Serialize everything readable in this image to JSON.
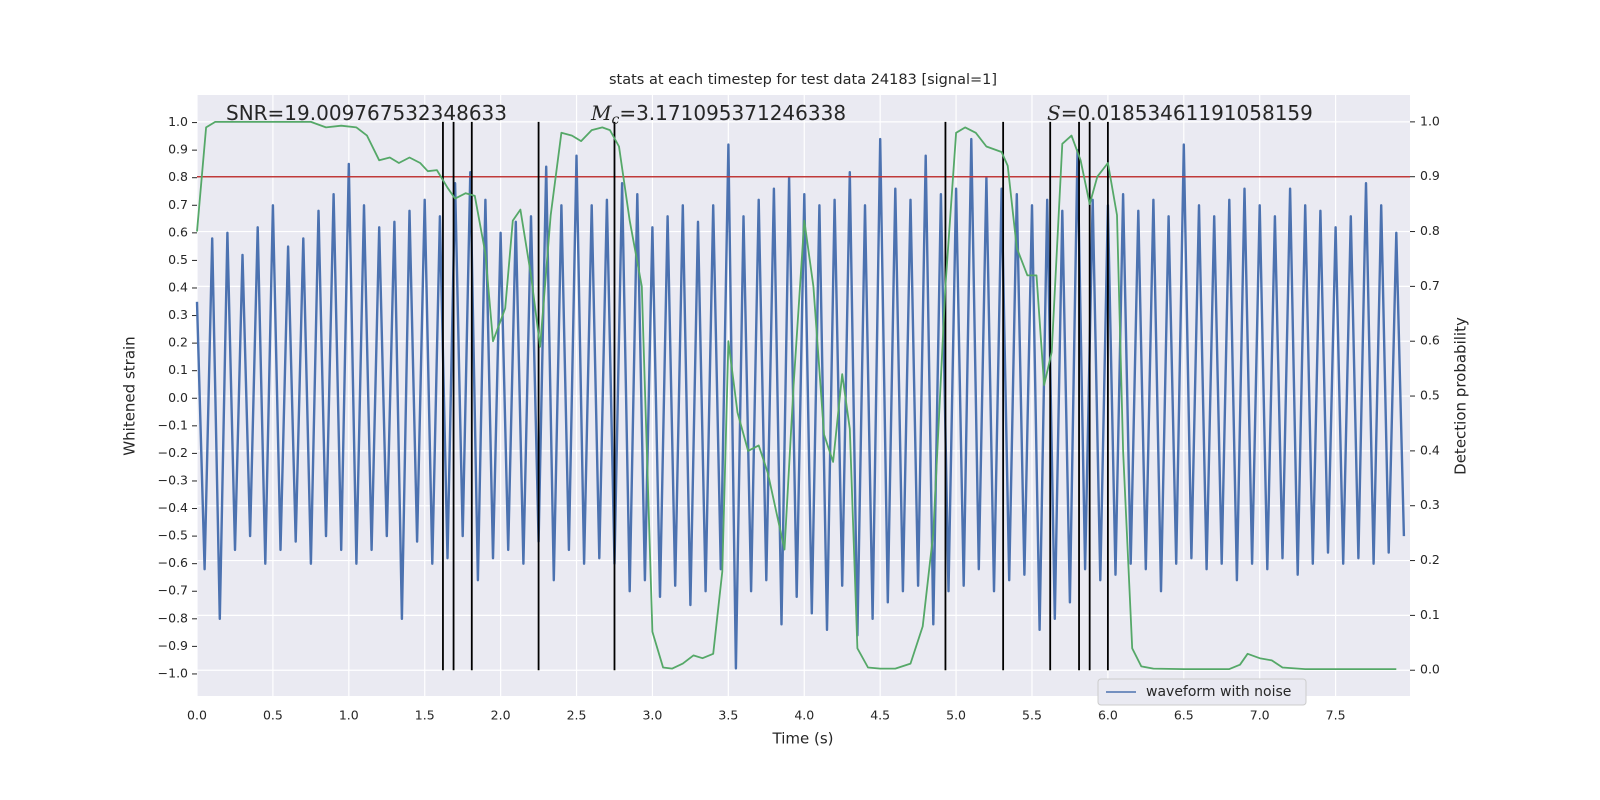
{
  "chart_data": {
    "type": "line",
    "title": "stats at each timestep for test data 24183 [signal=1]",
    "xlabel": "Time (s)",
    "ylabel": "Whitened strain",
    "y2label": "Detection probability",
    "annotations": [
      {
        "text": "SNR=19.009767532348633"
      },
      {
        "symbol": "M",
        "subscript": "c",
        "text": "=3.171095371246338"
      },
      {
        "symbol": "S",
        "text": "=0.01853461191058159"
      }
    ],
    "xlim": [
      0,
      7.99
    ],
    "ylim": [
      -1.08,
      1.1
    ],
    "y2lim": [
      -0.047,
      1.049
    ],
    "xticks": [
      {
        "value": 0,
        "label": "0.0"
      },
      0.5,
      {
        "value": 1,
        "label": "1.0"
      },
      1.5,
      {
        "value": 2,
        "label": "2.0"
      },
      2.5,
      {
        "value": 3,
        "label": "3.0"
      },
      3.5,
      {
        "value": 4,
        "label": "4.0"
      },
      4.5,
      {
        "value": 5,
        "label": "5.0"
      },
      5.5,
      {
        "value": 6,
        "label": "6.0"
      },
      6.5,
      {
        "value": 7,
        "label": "7.0"
      },
      7.5
    ],
    "yticks": [
      {
        "value": -1,
        "label": "−1.0"
      },
      {
        "value": -0.9,
        "label": "−0.9"
      },
      {
        "value": -0.8,
        "label": "−0.8"
      },
      {
        "value": -0.7,
        "label": "−0.7"
      },
      {
        "value": -0.6,
        "label": "−0.6"
      },
      {
        "value": -0.5,
        "label": "−0.5"
      },
      {
        "value": -0.4,
        "label": "−0.4"
      },
      {
        "value": -0.3,
        "label": "−0.3"
      },
      {
        "value": -0.2,
        "label": "−0.2"
      },
      {
        "value": -0.1,
        "label": "−0.1"
      },
      {
        "value": 0,
        "label": "0.0"
      },
      0.1,
      0.2,
      0.3,
      0.4,
      0.5,
      0.6,
      0.7,
      0.8,
      0.9,
      {
        "value": 1,
        "label": "1.0"
      }
    ],
    "y2ticks": [
      {
        "value": 0,
        "label": "0.0"
      },
      0.1,
      0.2,
      0.3,
      0.4,
      0.5,
      0.6,
      0.7,
      0.8,
      0.9,
      {
        "value": 1,
        "label": "1.0"
      }
    ],
    "grid": true,
    "legend": "lower right",
    "threshold": {
      "value": 0.9,
      "axis": "y2",
      "color": "#c03a3a"
    },
    "vlines": {
      "values": [
        1.62,
        1.69,
        1.81,
        2.25,
        2.75,
        4.93,
        5.31,
        5.62,
        5.81,
        5.88,
        6.0
      ],
      "ymin": 0,
      "ymax": 1,
      "axis": "y2",
      "color": "#000000"
    },
    "series": [
      {
        "name": "waveform with noise",
        "color": "#4c72b0",
        "x": [
          0,
          0.05,
          0.1,
          0.15,
          0.2,
          0.25,
          0.3,
          0.35,
          0.4,
          0.45,
          0.5,
          0.55,
          0.6,
          0.65,
          0.7,
          0.75,
          0.8,
          0.85,
          0.9,
          0.95,
          1,
          1.05,
          1.1,
          1.15,
          1.2,
          1.25,
          1.3,
          1.35,
          1.4,
          1.45,
          1.5,
          1.55,
          1.6,
          1.65,
          1.7,
          1.75,
          1.8,
          1.85,
          1.9,
          1.95,
          2,
          2.05,
          2.1,
          2.15,
          2.2,
          2.25,
          2.3,
          2.35,
          2.4,
          2.45,
          2.5,
          2.55,
          2.6,
          2.65,
          2.7,
          2.75,
          2.8,
          2.85,
          2.9,
          2.95,
          3,
          3.05,
          3.1,
          3.15,
          3.2,
          3.25,
          3.3,
          3.35,
          3.4,
          3.45,
          3.5,
          3.55,
          3.6,
          3.65,
          3.7,
          3.75,
          3.8,
          3.85,
          3.9,
          3.95,
          4,
          4.05,
          4.1,
          4.15,
          4.2,
          4.25,
          4.3,
          4.35,
          4.4,
          4.45,
          4.5,
          4.55,
          4.6,
          4.65,
          4.7,
          4.75,
          4.8,
          4.85,
          4.9,
          4.95,
          5,
          5.05,
          5.1,
          5.15,
          5.2,
          5.25,
          5.3,
          5.35,
          5.4,
          5.45,
          5.5,
          5.55,
          5.6,
          5.65,
          5.7,
          5.75,
          5.8,
          5.85,
          5.9,
          5.95,
          6,
          6.05,
          6.1,
          6.15,
          6.2,
          6.25,
          6.3,
          6.35,
          6.4,
          6.45,
          6.5,
          6.55,
          6.6,
          6.65,
          6.7,
          6.75,
          6.8,
          6.85,
          6.9,
          6.95,
          7,
          7.05,
          7.1,
          7.15,
          7.2,
          7.25,
          7.3,
          7.35,
          7.4,
          7.45,
          7.5,
          7.55,
          7.6,
          7.65,
          7.7,
          7.75,
          7.8,
          7.85,
          7.9,
          7.95
        ],
        "values": [
          0.35,
          -0.62,
          0.58,
          -0.8,
          0.6,
          -0.55,
          0.52,
          -0.5,
          0.62,
          -0.6,
          0.7,
          -0.55,
          0.55,
          -0.52,
          0.58,
          -0.6,
          0.68,
          -0.5,
          0.74,
          -0.55,
          0.85,
          -0.6,
          0.7,
          -0.55,
          0.62,
          -0.5,
          0.64,
          -0.8,
          0.68,
          -0.52,
          0.72,
          -0.6,
          0.66,
          -0.58,
          0.78,
          -0.5,
          0.82,
          -0.66,
          0.72,
          -0.58,
          0.6,
          -0.55,
          0.64,
          -0.6,
          0.66,
          -0.52,
          0.84,
          -0.66,
          0.7,
          -0.55,
          0.88,
          -0.6,
          0.7,
          -0.58,
          0.72,
          -0.6,
          0.78,
          -0.7,
          0.74,
          -0.66,
          0.62,
          -0.72,
          0.66,
          -0.68,
          0.7,
          -0.75,
          0.64,
          -0.7,
          0.7,
          -0.62,
          0.92,
          -0.98,
          0.66,
          -0.7,
          0.72,
          -0.66,
          0.76,
          -0.82,
          0.8,
          -0.72,
          0.74,
          -0.78,
          0.7,
          -0.84,
          0.72,
          -0.68,
          0.82,
          -0.86,
          0.7,
          -0.8,
          0.94,
          -0.74,
          0.76,
          -0.7,
          0.72,
          -0.68,
          0.88,
          -0.82,
          0.74,
          -0.7,
          0.76,
          -0.68,
          0.94,
          -0.62,
          0.8,
          -0.7,
          0.76,
          -0.66,
          0.74,
          -0.64,
          0.7,
          -0.84,
          0.72,
          -0.8,
          0.68,
          -0.74,
          0.9,
          -0.62,
          0.72,
          -0.66,
          0.7,
          -0.64,
          0.74,
          -0.6,
          0.68,
          -0.62,
          0.72,
          -0.7,
          0.66,
          -0.6,
          0.92,
          -0.58,
          0.7,
          -0.62,
          0.66,
          -0.6,
          0.72,
          -0.66,
          0.76,
          -0.6,
          0.7,
          -0.62,
          0.66,
          -0.58,
          0.76,
          -0.64,
          0.7,
          -0.6,
          0.68,
          -0.56,
          0.62,
          -0.6,
          0.66,
          -0.58,
          0.78,
          -0.6,
          0.7,
          -0.56,
          0.6,
          -0.5
        ]
      },
      {
        "color": "#55a868",
        "axis": "y2",
        "x": [
          0,
          0.06,
          0.12,
          0.75,
          0.85,
          0.95,
          1.05,
          1.12,
          1.2,
          1.27,
          1.33,
          1.4,
          1.47,
          1.52,
          1.58,
          1.65,
          1.7,
          1.77,
          1.83,
          1.9,
          1.95,
          2.03,
          2.08,
          2.13,
          2.2,
          2.26,
          2.33,
          2.4,
          2.47,
          2.53,
          2.6,
          2.67,
          2.72,
          2.78,
          2.85,
          2.93,
          3,
          3.07,
          3.13,
          3.2,
          3.27,
          3.33,
          3.4,
          3.46,
          3.5,
          3.56,
          3.63,
          3.7,
          3.76,
          3.87,
          3.93,
          4,
          4.06,
          4.13,
          4.19,
          4.25,
          4.3,
          4.35,
          4.42,
          4.5,
          4.6,
          4.7,
          4.78,
          4.85,
          4.93,
          5,
          5.06,
          5.13,
          5.2,
          5.3,
          5.34,
          5.4,
          5.47,
          5.53,
          5.58,
          5.63,
          5.7,
          5.76,
          5.82,
          5.88,
          5.93,
          6,
          6.06,
          6.1,
          6.16,
          6.22,
          6.3,
          6.5,
          6.8,
          6.87,
          6.92,
          7,
          7.08,
          7.15,
          7.3,
          7.6,
          7.9
        ],
        "values": [
          0.8,
          0.99,
          1,
          1,
          0.99,
          0.993,
          0.99,
          0.975,
          0.93,
          0.935,
          0.925,
          0.935,
          0.925,
          0.91,
          0.912,
          0.88,
          0.86,
          0.87,
          0.865,
          0.76,
          0.6,
          0.66,
          0.82,
          0.84,
          0.72,
          0.59,
          0.83,
          0.98,
          0.975,
          0.965,
          0.985,
          0.99,
          0.985,
          0.955,
          0.82,
          0.7,
          0.07,
          0.005,
          0.003,
          0.012,
          0.027,
          0.022,
          0.03,
          0.18,
          0.6,
          0.47,
          0.4,
          0.41,
          0.36,
          0.22,
          0.52,
          0.82,
          0.7,
          0.43,
          0.38,
          0.54,
          0.44,
          0.04,
          0.005,
          0.003,
          0.003,
          0.012,
          0.08,
          0.25,
          0.7,
          0.98,
          0.99,
          0.98,
          0.955,
          0.945,
          0.92,
          0.77,
          0.72,
          0.72,
          0.52,
          0.58,
          0.96,
          0.975,
          0.93,
          0.85,
          0.9,
          0.925,
          0.83,
          0.4,
          0.04,
          0.007,
          0.003,
          0.002,
          0.002,
          0.01,
          0.03,
          0.022,
          0.018,
          0.005,
          0.002,
          0.002,
          0.002
        ]
      }
    ]
  }
}
